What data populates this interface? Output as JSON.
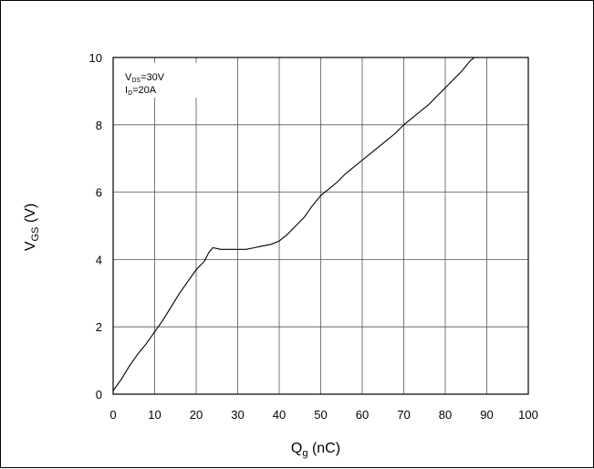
{
  "chart_data": {
    "type": "line",
    "xlabel": {
      "main": "Q",
      "sub": "g",
      "unit": " (nC)"
    },
    "ylabel": {
      "main": "V",
      "sub": "GS",
      "unit": " (V)"
    },
    "xlim": [
      0,
      100
    ],
    "ylim": [
      0,
      10
    ],
    "xticks": [
      0,
      10,
      20,
      30,
      40,
      50,
      60,
      70,
      80,
      90,
      100
    ],
    "yticks": [
      0,
      2,
      4,
      6,
      8,
      10
    ],
    "grid": true,
    "annotation": {
      "line1": {
        "main": "V",
        "sub": "DS",
        "rest": "=30V"
      },
      "line2": {
        "main": "I",
        "sub": "D",
        "rest": "=20A"
      }
    },
    "series": [
      {
        "x": [
          0,
          2,
          4,
          6,
          8,
          10,
          12,
          14,
          16,
          18,
          20,
          22,
          23,
          24,
          26,
          28,
          30,
          32,
          34,
          36,
          38,
          40,
          42,
          44,
          46,
          48,
          50,
          52,
          54,
          56,
          58,
          60,
          62,
          64,
          66,
          68,
          70,
          72,
          74,
          76,
          78,
          80,
          82,
          84,
          86,
          87
        ],
        "y": [
          0.1,
          0.45,
          0.85,
          1.2,
          1.5,
          1.85,
          2.2,
          2.6,
          3.0,
          3.35,
          3.7,
          3.95,
          4.2,
          4.35,
          4.3,
          4.3,
          4.3,
          4.3,
          4.35,
          4.4,
          4.45,
          4.55,
          4.75,
          5.0,
          5.25,
          5.6,
          5.9,
          6.1,
          6.3,
          6.55,
          6.75,
          6.95,
          7.15,
          7.35,
          7.55,
          7.75,
          8.0,
          8.2,
          8.4,
          8.6,
          8.85,
          9.1,
          9.35,
          9.6,
          9.9,
          10.0
        ]
      }
    ]
  }
}
